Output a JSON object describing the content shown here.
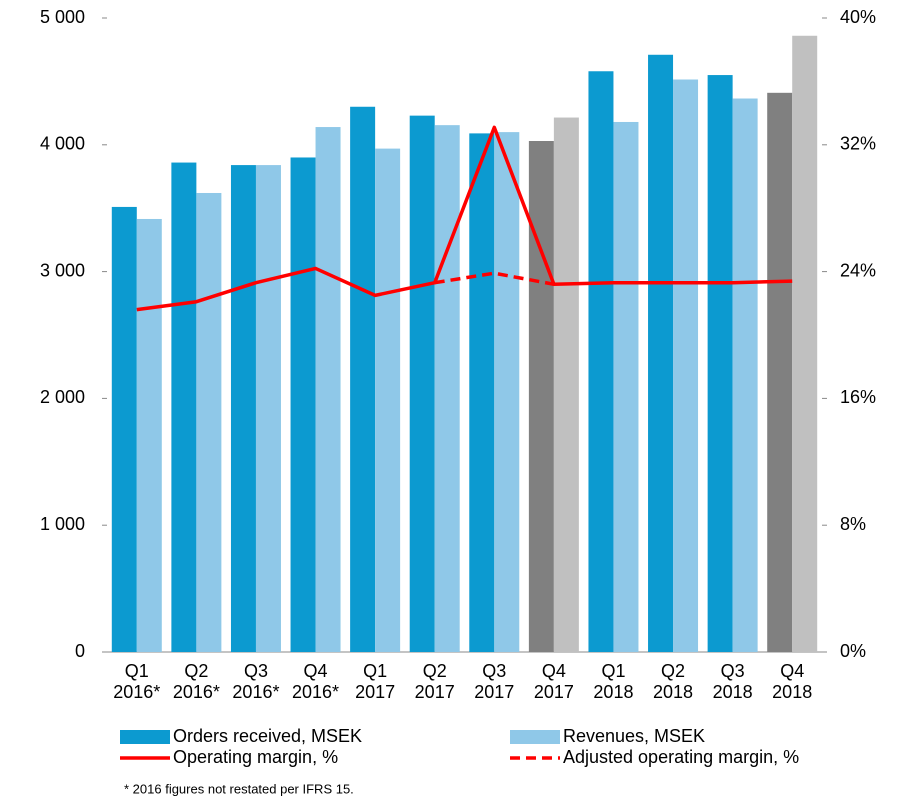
{
  "chart_data": {
    "type": "bar",
    "categories": [
      "Q1 2016*",
      "Q2 2016*",
      "Q3 2016*",
      "Q4 2016*",
      "Q1 2017",
      "Q2 2017",
      "Q3 2017",
      "Q4 2017",
      "Q1 2018",
      "Q2 2018",
      "Q3 2018",
      "Q4 2018"
    ],
    "series": [
      {
        "name": "Orders received, MSEK",
        "type": "bar",
        "color": "#0c9ad0",
        "colors": [
          "#0c9ad0",
          "#0c9ad0",
          "#0c9ad0",
          "#0c9ad0",
          "#0c9ad0",
          "#0c9ad0",
          "#0c9ad0",
          "#808080",
          "#0c9ad0",
          "#0c9ad0",
          "#0c9ad0",
          "#808080"
        ],
        "values": [
          3510,
          3860,
          3840,
          3900,
          4300,
          4230,
          4090,
          4030,
          4580,
          4710,
          4550,
          4410
        ]
      },
      {
        "name": "Revenues, MSEK",
        "type": "bar",
        "color": "#8fc8e8",
        "colors": [
          "#8fc8e8",
          "#8fc8e8",
          "#8fc8e8",
          "#8fc8e8",
          "#8fc8e8",
          "#8fc8e8",
          "#8fc8e8",
          "#c0c0c0",
          "#8fc8e8",
          "#8fc8e8",
          "#8fc8e8",
          "#c0c0c0"
        ],
        "values": [
          3415,
          3620,
          3840,
          4140,
          3970,
          4155,
          4100,
          4215,
          4180,
          4515,
          4365,
          4860
        ]
      },
      {
        "name": "Operating margin, %",
        "type": "line",
        "axis": "y2",
        "color": "#ff0000",
        "dashed": false,
        "values": [
          21.6,
          22.1,
          23.3,
          24.2,
          22.5,
          23.3,
          33.1,
          23.2,
          23.3,
          23.3,
          23.3,
          23.4
        ]
      },
      {
        "name": "Adjusted operating margin, %",
        "type": "line",
        "axis": "y2",
        "color": "#ff0000",
        "dashed": true,
        "values": [
          null,
          null,
          null,
          null,
          null,
          23.3,
          23.9,
          23.2,
          null,
          null,
          null,
          null
        ]
      }
    ],
    "ylim": [
      0,
      5000
    ],
    "yticks": [
      {
        "value": 0,
        "label": "0"
      },
      {
        "value": 1000,
        "label": "1 000"
      },
      {
        "value": 2000,
        "label": "2 000"
      },
      {
        "value": 3000,
        "label": "3 000"
      },
      {
        "value": 4000,
        "label": "4 000"
      },
      {
        "value": 5000,
        "label": "5 000"
      }
    ],
    "y2lim": [
      0,
      40
    ],
    "y2ticks": [
      {
        "value": 0,
        "label": "0%"
      },
      {
        "value": 8,
        "label": "8%"
      },
      {
        "value": 16,
        "label": "16%"
      },
      {
        "value": 24,
        "label": "24%"
      },
      {
        "value": 32,
        "label": "32%"
      },
      {
        "value": 40,
        "label": "40%"
      }
    ],
    "grid": false,
    "footnote": "* 2016 figures not restated per IFRS 15."
  }
}
